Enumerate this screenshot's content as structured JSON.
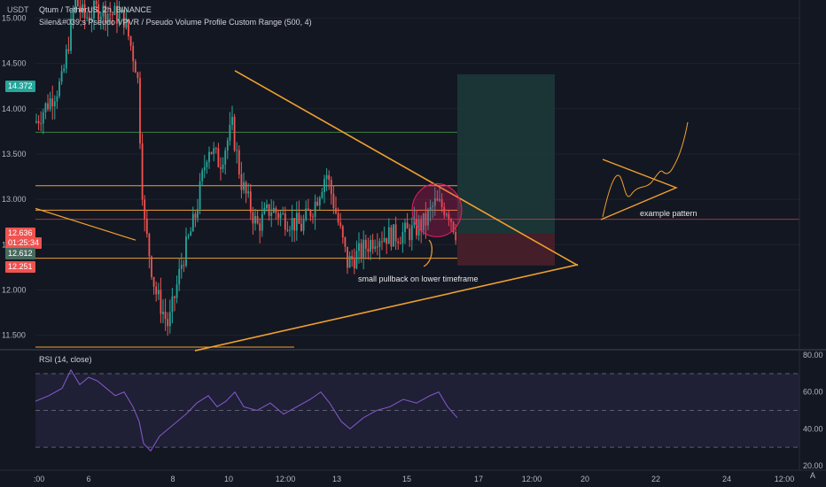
{
  "header": {
    "symbol": "Qtum / TetherUS, 2h, BINANCE",
    "indicator": "Silen&#039;s Pseudo VPVR / Pseudo Volume Profile Custom Range (500, 4)",
    "currency": "USDT",
    "rsi_title": "RSI (14, close)"
  },
  "price_labels": {
    "last": "14.372",
    "current": "12.636",
    "countdown": "01:25:34",
    "entry": "12.612",
    "stop": "12.251"
  },
  "annotations": {
    "pullback": "small pullback on lower timeframe",
    "pattern": "example pattern"
  },
  "corner_label": "A",
  "colors": {
    "background": "#131722",
    "up": "#26a69a",
    "down": "#ef5350",
    "levels": "#f0a030",
    "rsi_line": "#7e57c2",
    "target_zone": "#1d3a3a",
    "stop_zone": "#4a1f2a"
  },
  "chart_data": {
    "type": "candlestick",
    "price_axis": {
      "ticks": [
        "15.000",
        "14.500",
        "14.000",
        "13.500",
        "13.000",
        "12.500",
        "12.000",
        "11.500"
      ],
      "ylim": [
        11.35,
        15.2
      ]
    },
    "time_axis": {
      "ticks": [
        ":00",
        "6",
        "8",
        "10",
        "12:00",
        "13",
        "15",
        "17",
        "12:00",
        "20",
        "22",
        "24",
        "12:00"
      ]
    },
    "horizontal_levels": [
      13.15,
      12.88,
      12.78,
      12.35,
      11.37,
      13.74
    ],
    "triangle": {
      "upper": [
        [
          14.4,
          0
        ],
        [
          12.3,
          1
        ]
      ],
      "lower": [
        [
          11.3,
          0
        ],
        [
          12.3,
          1
        ]
      ]
    },
    "trade": {
      "target": 14.38,
      "entry": 12.62,
      "stop": 12.27
    },
    "rsi": {
      "ticks": [
        "80.00",
        "60.00",
        "40.00",
        "20.00"
      ],
      "ylim": [
        18,
        82
      ],
      "bands": [
        70,
        50,
        30
      ]
    }
  }
}
